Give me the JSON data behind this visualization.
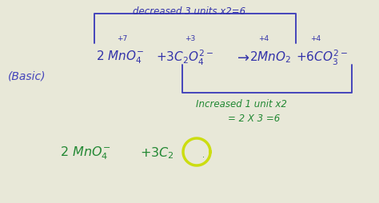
{
  "bg_color": "#e8e8d8",
  "blue": "#3333aa",
  "green": "#228833",
  "yellow_circle": "#ccdd11",
  "bracket_color": "#4444bb",
  "figsize": [
    4.74,
    2.55
  ],
  "dpi": 100,
  "top_label": "decreased 3 units x2=6",
  "basic": "(Basic)",
  "increased": "Increased 1 unit x2",
  "calc": "= 2 X 3 =6",
  "ox_mn_top": "+7",
  "ox_c_top": "+3",
  "ox_mn2_top": "+4",
  "ox_co_top": "+4"
}
